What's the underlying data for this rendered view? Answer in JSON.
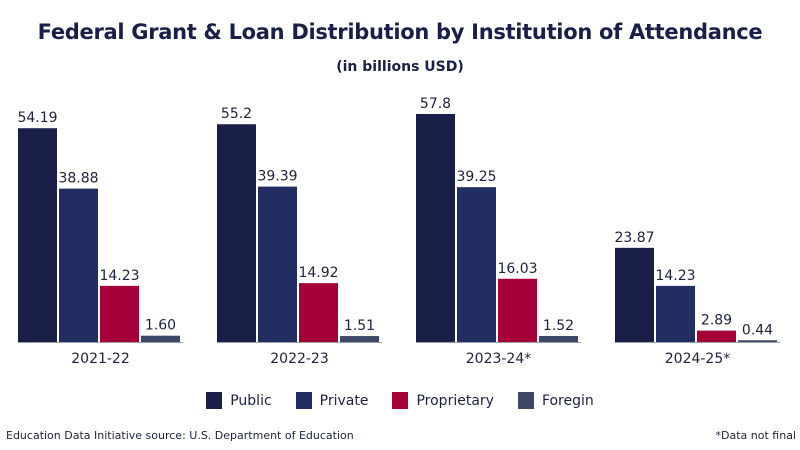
{
  "title": "Federal Grant & Loan Distribution by Institution of Attendance",
  "subtitle": "(in billions USD)",
  "source": "Education Data Initiative source: U.S. Department of Education",
  "note": "*Data not final",
  "chart_data": {
    "type": "bar",
    "categories": [
      "2021-22",
      "2022-23",
      "2023-24*",
      "2024-25*"
    ],
    "series": [
      {
        "name": "Public",
        "color": "#1a1f4a",
        "values": [
          54.19,
          55.2,
          57.8,
          23.87
        ],
        "labels": [
          "54.19",
          "55.2",
          "57.8",
          "23.87"
        ]
      },
      {
        "name": "Private",
        "color": "#222d62",
        "values": [
          38.88,
          39.39,
          39.25,
          14.23
        ],
        "labels": [
          "38.88",
          "39.39",
          "39.25",
          "14.23"
        ]
      },
      {
        "name": "Proprietary",
        "color": "#a5003a",
        "values": [
          14.23,
          14.92,
          16.03,
          2.89
        ],
        "labels": [
          "14.23",
          "14.92",
          "16.03",
          "2.89"
        ]
      },
      {
        "name": "Foregin",
        "color": "#3c4866",
        "values": [
          1.6,
          1.51,
          1.52,
          0.44
        ],
        "labels": [
          "1.60",
          "1.51",
          "1.52",
          "0.44"
        ]
      }
    ],
    "ylim": [
      0,
      60
    ],
    "grid": false,
    "legend": "bottom"
  }
}
